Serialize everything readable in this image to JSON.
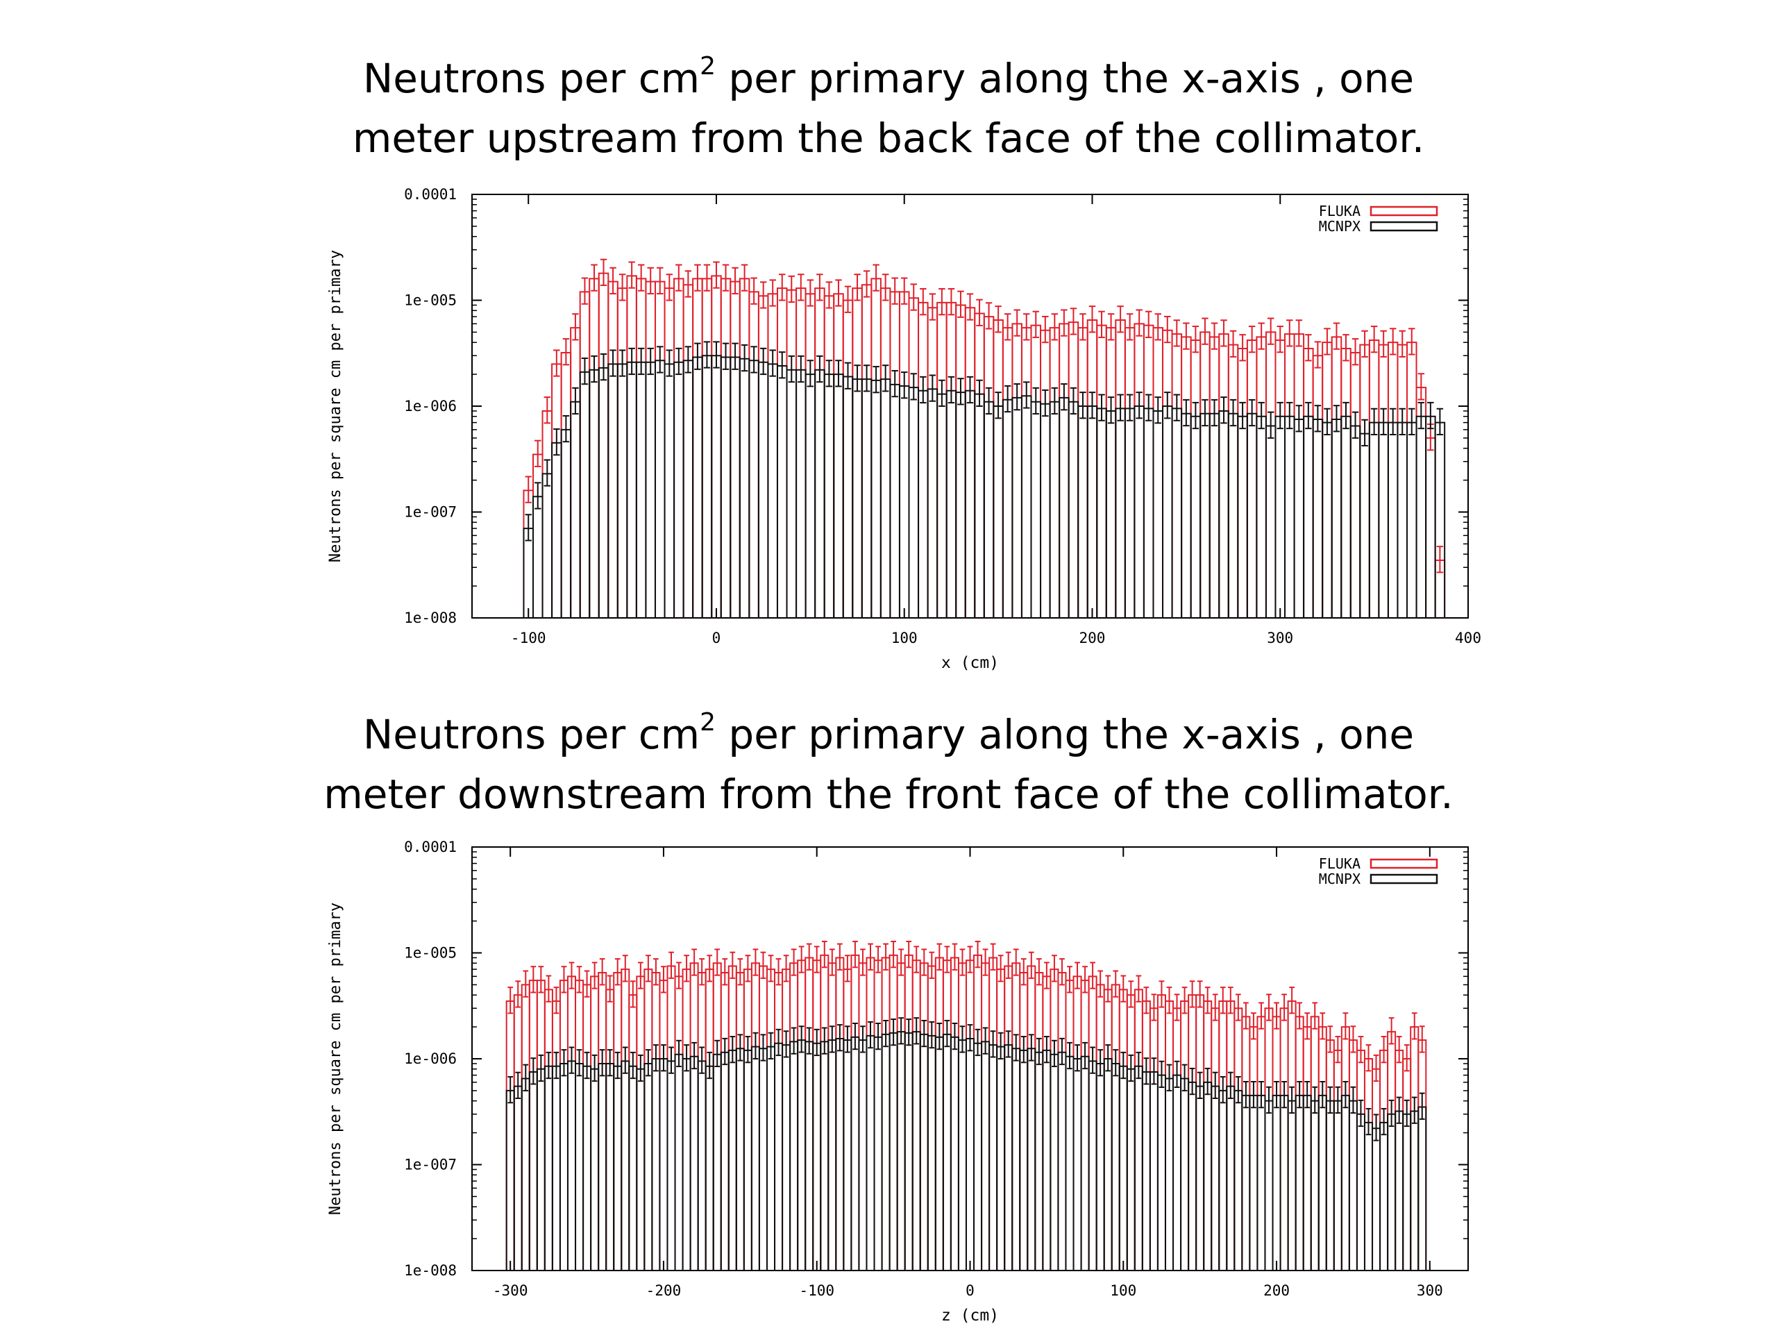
{
  "charts": [
    {
      "title_line1_pre": "Neutrons per cm",
      "title_sup": "2",
      "title_line1_post": " per primary along the x-axis , one",
      "title_line2": "meter upstream from the back face of the collimator."
    },
    {
      "title_line1_pre": "Neutrons per cm",
      "title_sup": "2",
      "title_line1_post": " per primary along the x-axis , one",
      "title_line2": "meter downstream from the front face of the collimator."
    }
  ],
  "chart_data": [
    {
      "type": "bar",
      "title": "Neutrons per cm2 per primary along the x-axis , one meter upstream from the back face of the collimator.",
      "xlabel": "x (cm)",
      "ylabel": "Neutrons per square cm per primary",
      "xlim": [
        -130,
        400
      ],
      "ylim": [
        1e-08,
        0.0001
      ],
      "yscale": "log",
      "xticks": [
        "-100",
        "0",
        "100",
        "200",
        "300",
        "400"
      ],
      "yticks": [
        "1e-008",
        "1e-007",
        "1e-006",
        "1e-005",
        "0.0001"
      ],
      "legend_position": "top-right",
      "bin_width": 5,
      "x": [
        -100,
        -95,
        -90,
        -85,
        -80,
        -75,
        -70,
        -65,
        -60,
        -55,
        -50,
        -45,
        -40,
        -35,
        -30,
        -25,
        -20,
        -15,
        -10,
        -5,
        0,
        5,
        10,
        15,
        20,
        25,
        30,
        35,
        40,
        45,
        50,
        55,
        60,
        65,
        70,
        75,
        80,
        85,
        90,
        95,
        100,
        105,
        110,
        115,
        120,
        125,
        130,
        135,
        140,
        145,
        150,
        155,
        160,
        165,
        170,
        175,
        180,
        185,
        190,
        195,
        200,
        205,
        210,
        215,
        220,
        225,
        230,
        235,
        240,
        245,
        250,
        255,
        260,
        265,
        270,
        275,
        280,
        285,
        290,
        295,
        300,
        305,
        310,
        315,
        320,
        325,
        330,
        335,
        340,
        345,
        350,
        355,
        360,
        365,
        370,
        375,
        380,
        385
      ],
      "series": [
        {
          "name": "FLUKA",
          "color": "#e0202a",
          "values": [
            1.6e-07,
            3.5e-07,
            9e-07,
            2.5e-06,
            3.2e-06,
            5.5e-06,
            1.2e-05,
            1.6e-05,
            1.8e-05,
            1.5e-05,
            1.3e-05,
            1.7e-05,
            1.6e-05,
            1.5e-05,
            1.5e-05,
            1.3e-05,
            1.6e-05,
            1.4e-05,
            1.6e-05,
            1.6e-05,
            1.7e-05,
            1.6e-05,
            1.5e-05,
            1.6e-05,
            1.2e-05,
            1.1e-05,
            1.15e-05,
            1.3e-05,
            1.25e-05,
            1.3e-05,
            1.15e-05,
            1.3e-05,
            1.1e-05,
            1.15e-05,
            1e-05,
            1.3e-05,
            1.4e-05,
            1.6e-05,
            1.3e-05,
            1.2e-05,
            1.2e-05,
            1.05e-05,
            9.5e-06,
            8.5e-06,
            9.5e-06,
            9.5e-06,
            9e-06,
            8.5e-06,
            7.5e-06,
            7e-06,
            6.5e-06,
            5.5e-06,
            6e-06,
            5.5e-06,
            5.8e-06,
            5.2e-06,
            5.5e-06,
            6e-06,
            6.2e-06,
            5.5e-06,
            6.5e-06,
            5.8e-06,
            5.5e-06,
            6.5e-06,
            5.5e-06,
            6e-06,
            5.8e-06,
            5.5e-06,
            5.2e-06,
            4.8e-06,
            4.5e-06,
            4.2e-06,
            5e-06,
            4.5e-06,
            4.8e-06,
            3.8e-06,
            3.5e-06,
            4.2e-06,
            4.5e-06,
            5e-06,
            4.2e-06,
            4.8e-06,
            4.8e-06,
            3.5e-06,
            3e-06,
            4e-06,
            4.5e-06,
            3.5e-06,
            3.2e-06,
            3.8e-06,
            4.2e-06,
            3.8e-06,
            4e-06,
            3.8e-06,
            4e-06,
            1.5e-06,
            5e-07,
            3.5e-08
          ]
        },
        {
          "name": "MCNPX",
          "color": "#111111",
          "values": [
            7e-08,
            1.4e-07,
            2.3e-07,
            4.5e-07,
            6e-07,
            1.1e-06,
            2.1e-06,
            2.2e-06,
            2.3e-06,
            2.5e-06,
            2.5e-06,
            2.6e-06,
            2.6e-06,
            2.6e-06,
            2.7e-06,
            2.5e-06,
            2.6e-06,
            2.7e-06,
            2.9e-06,
            3e-06,
            3e-06,
            2.9e-06,
            2.9e-06,
            2.8e-06,
            2.7e-06,
            2.6e-06,
            2.5e-06,
            2.4e-06,
            2.2e-06,
            2.2e-06,
            2e-06,
            2.2e-06,
            2e-06,
            2e-06,
            1.9e-06,
            1.8e-06,
            1.8e-06,
            1.75e-06,
            1.8e-06,
            1.6e-06,
            1.55e-06,
            1.5e-06,
            1.4e-06,
            1.45e-06,
            1.3e-06,
            1.4e-06,
            1.35e-06,
            1.4e-06,
            1.3e-06,
            1.1e-06,
            1e-06,
            1.15e-06,
            1.2e-06,
            1.25e-06,
            1.1e-06,
            1.05e-06,
            1.1e-06,
            1.2e-06,
            1.1e-06,
            1e-06,
            1e-06,
            9.5e-07,
            9e-07,
            9.5e-07,
            9.5e-07,
            1e-06,
            9.5e-07,
            9e-07,
            1e-06,
            9.5e-07,
            8.5e-07,
            8e-07,
            8.5e-07,
            8.5e-07,
            9e-07,
            8.5e-07,
            8e-07,
            8.5e-07,
            8e-07,
            6.5e-07,
            8e-07,
            8e-07,
            7.5e-07,
            8e-07,
            7.5e-07,
            7e-07,
            7.5e-07,
            8e-07,
            6.5e-07,
            5.5e-07,
            7e-07,
            7e-07,
            7e-07,
            7e-07,
            7e-07,
            8e-07,
            8e-07,
            7e-07
          ]
        }
      ]
    },
    {
      "type": "bar",
      "title": "Neutrons per cm2 per primary along the x-axis , one meter downstream from the front face of the collimator.",
      "xlabel": "z (cm)",
      "ylabel": "Neutrons per square cm per primary",
      "xlim": [
        -325,
        325
      ],
      "ylim": [
        1e-08,
        0.0001
      ],
      "yscale": "log",
      "xticks": [
        "-300",
        "-200",
        "-100",
        "0",
        "100",
        "200",
        "300"
      ],
      "yticks": [
        "1e-008",
        "1e-007",
        "1e-006",
        "1e-005",
        "0.0001"
      ],
      "legend_position": "top-right",
      "bin_width": 5,
      "x": [
        -300,
        -295,
        -290,
        -285,
        -280,
        -275,
        -270,
        -265,
        -260,
        -255,
        -250,
        -245,
        -240,
        -235,
        -230,
        -225,
        -220,
        -215,
        -210,
        -205,
        -200,
        -195,
        -190,
        -185,
        -180,
        -175,
        -170,
        -165,
        -160,
        -155,
        -150,
        -145,
        -140,
        -135,
        -130,
        -125,
        -120,
        -115,
        -110,
        -105,
        -100,
        -95,
        -90,
        -85,
        -80,
        -75,
        -70,
        -65,
        -60,
        -55,
        -50,
        -45,
        -40,
        -35,
        -30,
        -25,
        -20,
        -15,
        -10,
        -5,
        0,
        5,
        10,
        15,
        20,
        25,
        30,
        35,
        40,
        45,
        50,
        55,
        60,
        65,
        70,
        75,
        80,
        85,
        90,
        95,
        100,
        105,
        110,
        115,
        120,
        125,
        130,
        135,
        140,
        145,
        150,
        155,
        160,
        165,
        170,
        175,
        180,
        185,
        190,
        195,
        200,
        205,
        210,
        215,
        220,
        225,
        230,
        235,
        240,
        245,
        250,
        255,
        260,
        265,
        270,
        275,
        280,
        285,
        290,
        295
      ],
      "series": [
        {
          "name": "FLUKA",
          "color": "#e0202a",
          "values": [
            3.5e-06,
            4e-06,
            5e-06,
            5.5e-06,
            5.5e-06,
            4.5e-06,
            3.5e-06,
            5.5e-06,
            6e-06,
            5.5e-06,
            5e-06,
            6e-06,
            6.5e-06,
            4.5e-06,
            6.5e-06,
            7e-06,
            4e-06,
            6e-06,
            7e-06,
            6.5e-06,
            5.5e-06,
            7.5e-06,
            6e-06,
            7e-06,
            8e-06,
            6.5e-06,
            7e-06,
            8e-06,
            6.5e-06,
            7.5e-06,
            6.5e-06,
            7e-06,
            8e-06,
            7.5e-06,
            7e-06,
            6.5e-06,
            7e-06,
            8e-06,
            8.5e-06,
            9e-06,
            8.5e-06,
            9.5e-06,
            8e-06,
            9e-06,
            7e-06,
            9.5e-06,
            8e-06,
            9e-06,
            8.5e-06,
            9e-06,
            9.5e-06,
            8e-06,
            9.5e-06,
            8.5e-06,
            8e-06,
            7.5e-06,
            9e-06,
            8.5e-06,
            9e-06,
            8e-06,
            8.5e-06,
            9.5e-06,
            8e-06,
            9e-06,
            7e-06,
            7.5e-06,
            8e-06,
            6.5e-06,
            7.5e-06,
            6.5e-06,
            6e-06,
            7e-06,
            6.5e-06,
            5.5e-06,
            6e-06,
            5.5e-06,
            6e-06,
            5e-06,
            4.5e-06,
            5e-06,
            4.5e-06,
            4e-06,
            4.5e-06,
            3.5e-06,
            3e-06,
            4e-06,
            3.5e-06,
            3e-06,
            3.5e-06,
            4e-06,
            4e-06,
            3.5e-06,
            3e-06,
            3.5e-06,
            3.5e-06,
            3e-06,
            2.5e-06,
            2e-06,
            2.5e-06,
            3e-06,
            2.5e-06,
            3e-06,
            3.5e-06,
            2.5e-06,
            2e-06,
            2.5e-06,
            2e-06,
            1.5e-06,
            1.2e-06,
            2e-06,
            1.5e-06,
            1.2e-06,
            1e-06,
            8e-07,
            1.2e-06,
            1.8e-06,
            1.2e-06,
            1e-06,
            2e-06,
            1.5e-06
          ]
        },
        {
          "name": "MCNPX",
          "color": "#111111",
          "values": [
            5e-07,
            5.5e-07,
            6.5e-07,
            7.5e-07,
            8e-07,
            8.5e-07,
            8.5e-07,
            9e-07,
            9.5e-07,
            9e-07,
            8.5e-07,
            8e-07,
            9e-07,
            9e-07,
            8.5e-07,
            9.5e-07,
            8.5e-07,
            8e-07,
            9e-07,
            1e-06,
            1e-06,
            9.5e-07,
            1.1e-06,
            1e-06,
            1.05e-06,
            9.5e-07,
            8.5e-07,
            1.1e-06,
            1.15e-06,
            1.2e-06,
            1.25e-06,
            1.2e-06,
            1.3e-06,
            1.25e-06,
            1.3e-06,
            1.4e-06,
            1.35e-06,
            1.45e-06,
            1.5e-06,
            1.45e-06,
            1.4e-06,
            1.45e-06,
            1.5e-06,
            1.55e-06,
            1.5e-06,
            1.6e-06,
            1.5e-06,
            1.65e-06,
            1.6e-06,
            1.7e-06,
            1.75e-06,
            1.8e-06,
            1.75e-06,
            1.8e-06,
            1.7e-06,
            1.65e-06,
            1.6e-06,
            1.7e-06,
            1.6e-06,
            1.5e-06,
            1.55e-06,
            1.4e-06,
            1.45e-06,
            1.35e-06,
            1.3e-06,
            1.35e-06,
            1.25e-06,
            1.2e-06,
            1.25e-06,
            1.15e-06,
            1.2e-06,
            1.1e-06,
            1.15e-06,
            1.05e-06,
            1e-06,
            1.05e-06,
            9.5e-07,
            9e-07,
            1e-06,
            9e-07,
            8.5e-07,
            8e-07,
            8.5e-07,
            7.5e-07,
            7.5e-07,
            7e-07,
            6.5e-07,
            7e-07,
            6.5e-07,
            6e-07,
            5.5e-07,
            6e-07,
            5.5e-07,
            5e-07,
            5.5e-07,
            5e-07,
            4.5e-07,
            4.5e-07,
            4.5e-07,
            4e-07,
            4.5e-07,
            4.5e-07,
            4e-07,
            4.5e-07,
            4.5e-07,
            4e-07,
            4.5e-07,
            4e-07,
            4e-07,
            4.5e-07,
            4e-07,
            3e-07,
            2.5e-07,
            2.2e-07,
            2.5e-07,
            3e-07,
            3.2e-07,
            3e-07,
            3.2e-07,
            3.5e-07
          ]
        }
      ]
    }
  ]
}
